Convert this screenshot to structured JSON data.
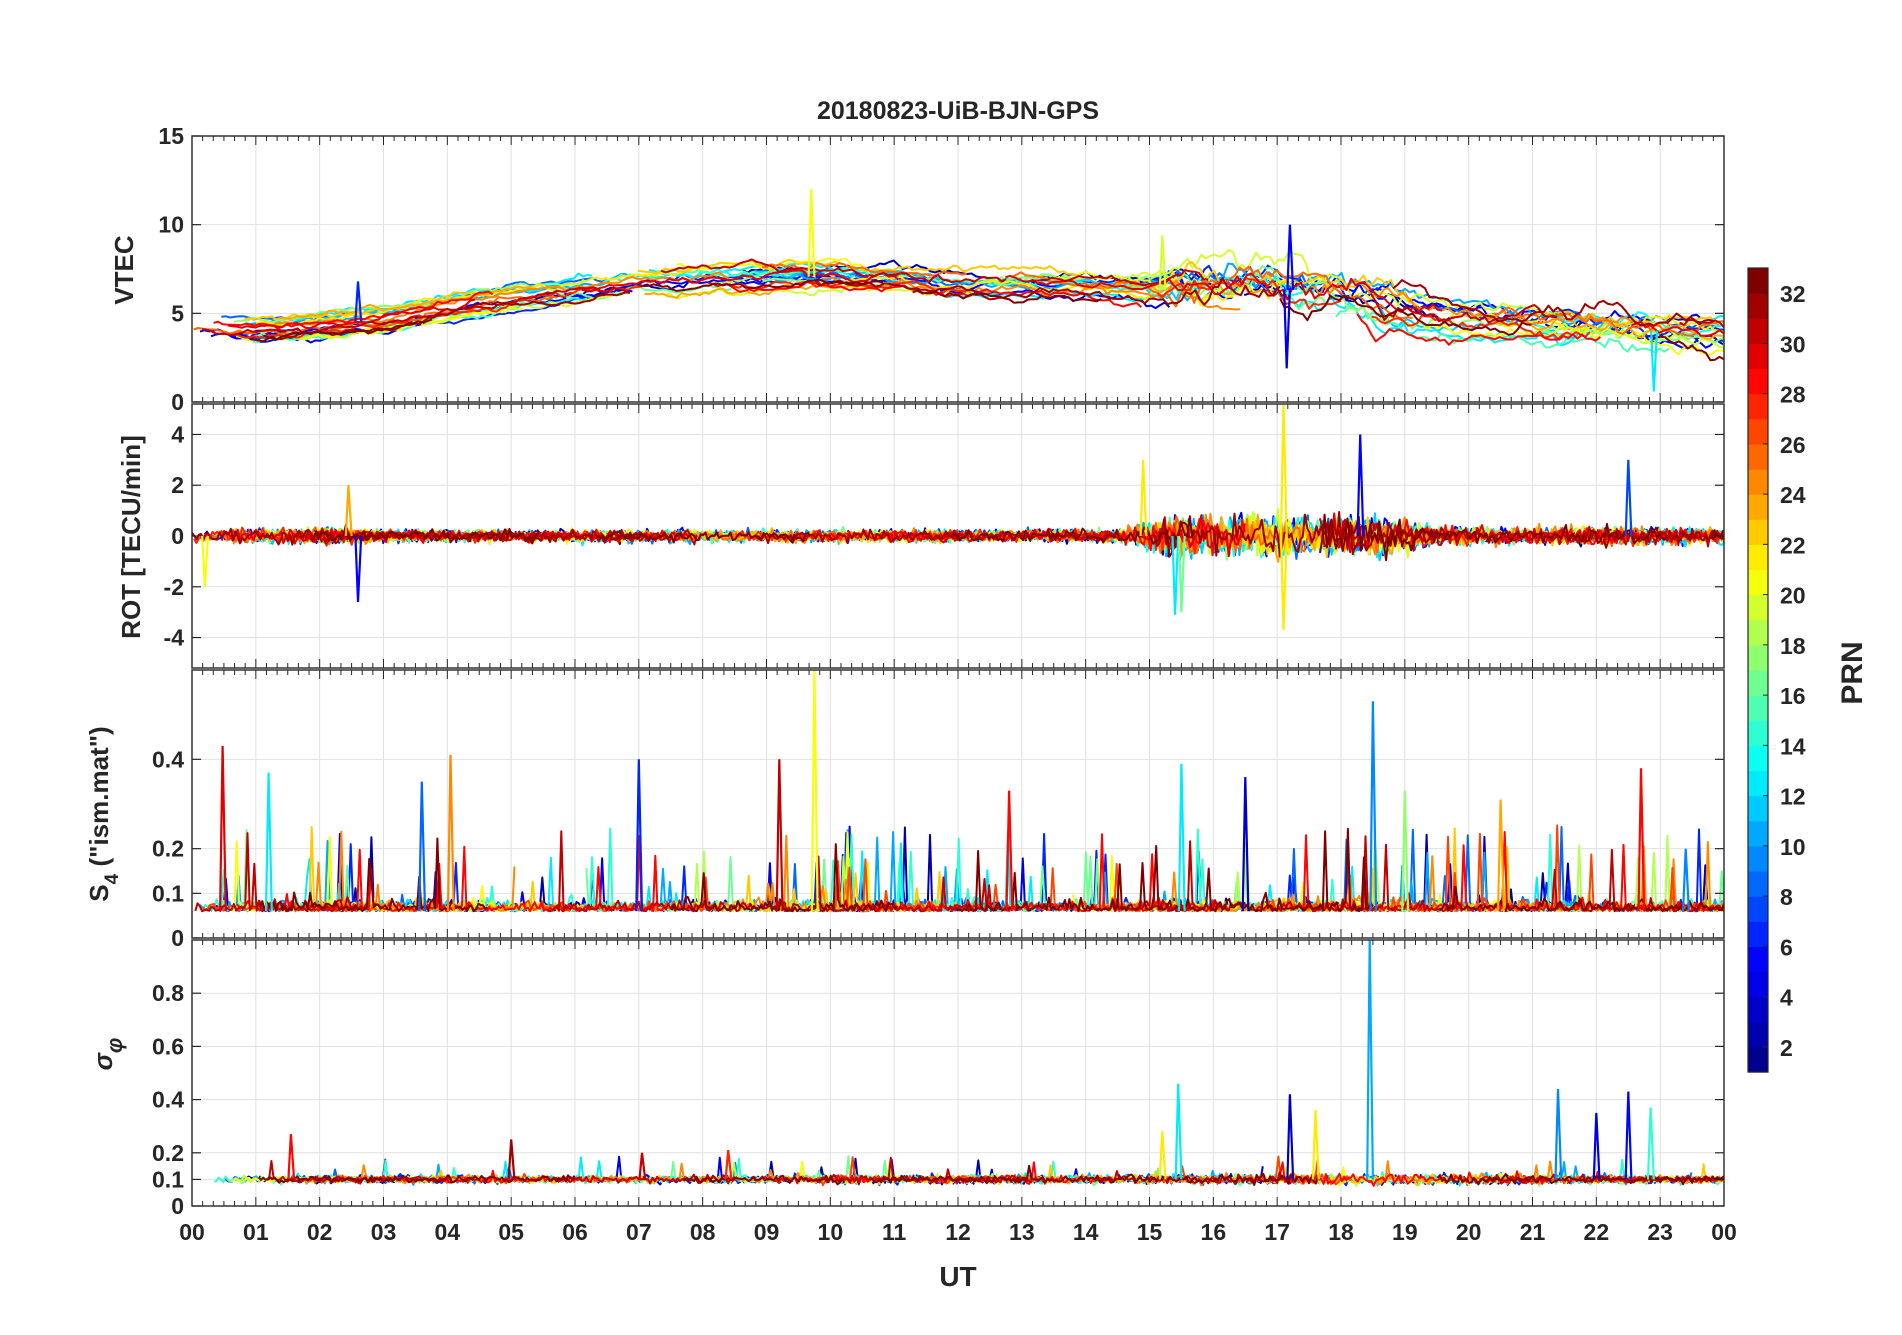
{
  "chart_data": {
    "type": "line",
    "title": "20180823-UiB-BJN-GPS",
    "xlabel": "UT",
    "x_ticks": [
      "00",
      "01",
      "02",
      "03",
      "04",
      "05",
      "06",
      "07",
      "08",
      "09",
      "10",
      "11",
      "12",
      "13",
      "14",
      "15",
      "16",
      "17",
      "18",
      "19",
      "20",
      "21",
      "22",
      "23",
      "00"
    ],
    "xlim": [
      0,
      24
    ],
    "grid": true,
    "colorbar": {
      "label": "PRN",
      "range": [
        1,
        32
      ],
      "ticks": [
        2,
        4,
        6,
        8,
        10,
        12,
        14,
        16,
        18,
        20,
        22,
        24,
        26,
        28,
        30,
        32
      ],
      "colormap": "jet",
      "colors": [
        "#00008f",
        "#0000ff",
        "#0080ff",
        "#00ffff",
        "#80ff80",
        "#ffff00",
        "#ff8000",
        "#ff0000",
        "#800000"
      ]
    },
    "panels": [
      {
        "id": "vtec",
        "ylabel": "VTEC",
        "ylim": [
          0,
          15
        ],
        "y_ticks": [
          0,
          5,
          10,
          15
        ],
        "y_tick_labels": [
          "0",
          "5",
          "10",
          "15"
        ],
        "baseline": [
          [
            0,
            4.3
          ],
          [
            1,
            4.1
          ],
          [
            2,
            4.3
          ],
          [
            3,
            4.7
          ],
          [
            4,
            5.3
          ],
          [
            5,
            5.9
          ],
          [
            6,
            6.4
          ],
          [
            7,
            6.8
          ],
          [
            8,
            7.0
          ],
          [
            9,
            7.0
          ],
          [
            10,
            7.1
          ],
          [
            11,
            6.9
          ],
          [
            12,
            6.6
          ],
          [
            13,
            6.5
          ],
          [
            14,
            6.4
          ],
          [
            15,
            6.3
          ],
          [
            16,
            6.3
          ],
          [
            17,
            6.4
          ],
          [
            18,
            6.0
          ],
          [
            19,
            5.2
          ],
          [
            20,
            4.7
          ],
          [
            21,
            4.4
          ],
          [
            22,
            4.2
          ],
          [
            23,
            4.0
          ],
          [
            24,
            3.8
          ]
        ],
        "noise": [
          [
            0,
            0.3
          ],
          [
            14.8,
            0.4
          ],
          [
            15.5,
            1.2
          ],
          [
            18.5,
            1.0
          ],
          [
            20,
            0.5
          ],
          [
            22,
            0.8
          ],
          [
            24,
            0.5
          ]
        ],
        "spikes": [
          {
            "t": 9.7,
            "v": 12.0,
            "prn": 20
          },
          {
            "t": 17.2,
            "v": 10.0,
            "prn": 5
          },
          {
            "t": 17.15,
            "v": 1.9,
            "prn": 4
          },
          {
            "t": 22.9,
            "v": 0.6,
            "prn": 12
          },
          {
            "t": 2.6,
            "v": 6.8,
            "prn": 6
          },
          {
            "t": 15.2,
            "v": 9.4,
            "prn": 19
          }
        ],
        "series_prns": [
          2,
          4,
          5,
          6,
          8,
          10,
          11,
          12,
          13,
          15,
          16,
          17,
          19,
          20,
          21,
          22,
          23,
          24,
          25,
          27,
          28,
          29,
          30,
          31,
          32
        ]
      },
      {
        "id": "rot",
        "ylabel": "ROT [TECU/min]",
        "ylim": [
          -5.2,
          5.2
        ],
        "y_ticks": [
          -4,
          -2,
          0,
          2,
          4
        ],
        "y_tick_labels": [
          "-4",
          "-2",
          "0",
          "2",
          "4"
        ],
        "baseline": [
          [
            0,
            0
          ],
          [
            24,
            0
          ]
        ],
        "noise": [
          [
            0,
            0.25
          ],
          [
            2.3,
            0.35
          ],
          [
            3,
            0.25
          ],
          [
            14.5,
            0.25
          ],
          [
            15.3,
            0.8
          ],
          [
            16.5,
            0.9
          ],
          [
            18.5,
            0.8
          ],
          [
            19.5,
            0.4
          ],
          [
            21,
            0.3
          ],
          [
            22,
            0.45
          ],
          [
            24,
            0.3
          ]
        ],
        "spikes": [
          {
            "t": 17.1,
            "v": 5.2,
            "prn": 21
          },
          {
            "t": 17.1,
            "v": -3.7,
            "prn": 21
          },
          {
            "t": 18.3,
            "v": 4.0,
            "prn": 5
          },
          {
            "t": 2.6,
            "v": -2.6,
            "prn": 5
          },
          {
            "t": 15.4,
            "v": -3.1,
            "prn": 12
          },
          {
            "t": 15.5,
            "v": -3.0,
            "prn": 16
          },
          {
            "t": 22.5,
            "v": 3.0,
            "prn": 7
          },
          {
            "t": 14.9,
            "v": 3.0,
            "prn": 21
          },
          {
            "t": 0.2,
            "v": -2.0,
            "prn": 20
          },
          {
            "t": 2.45,
            "v": 2.0,
            "prn": 23
          }
        ],
        "series_prns": [
          2,
          4,
          5,
          6,
          8,
          10,
          11,
          12,
          13,
          15,
          16,
          17,
          19,
          20,
          21,
          22,
          23,
          24,
          25,
          27,
          28,
          29,
          30,
          31,
          32
        ]
      },
      {
        "id": "s4",
        "ylabel": "S4 (\"ism.mat\")",
        "ylim": [
          0,
          0.6
        ],
        "y_ticks": [
          0,
          0.1,
          0.2,
          0.4
        ],
        "y_tick_labels": [
          "0",
          "0.1",
          "0.2",
          "0.4"
        ],
        "baseline": [
          [
            0,
            0.06
          ],
          [
            24,
            0.06
          ]
        ],
        "noise": [
          [
            0,
            0.025
          ],
          [
            24,
            0.025
          ]
        ],
        "spikes": [
          {
            "t": 9.75,
            "v": 0.6,
            "prn": 20
          },
          {
            "t": 18.5,
            "v": 0.53,
            "prn": 9
          },
          {
            "t": 0.48,
            "v": 0.43,
            "prn": 29
          },
          {
            "t": 4.05,
            "v": 0.41,
            "prn": 24
          },
          {
            "t": 9.2,
            "v": 0.4,
            "prn": 30
          },
          {
            "t": 7.0,
            "v": 0.4,
            "prn": 6
          },
          {
            "t": 15.5,
            "v": 0.39,
            "prn": 12
          },
          {
            "t": 22.7,
            "v": 0.38,
            "prn": 28
          },
          {
            "t": 1.2,
            "v": 0.37,
            "prn": 12
          },
          {
            "t": 3.6,
            "v": 0.35,
            "prn": 8
          },
          {
            "t": 16.5,
            "v": 0.36,
            "prn": 3
          },
          {
            "t": 19,
            "v": 0.33,
            "prn": 17
          },
          {
            "t": 23.4,
            "v": 0.2,
            "prn": 9
          },
          {
            "t": 12.8,
            "v": 0.33,
            "prn": 28
          },
          {
            "t": 20.5,
            "v": 0.31,
            "prn": 23
          }
        ],
        "series_prns": [
          2,
          4,
          6,
          8,
          10,
          12,
          14,
          16,
          18,
          20,
          22,
          24,
          26,
          28,
          30,
          32
        ]
      },
      {
        "id": "sigma_phi",
        "ylabel": "σφ",
        "ylim": [
          0,
          1
        ],
        "y_ticks": [
          0,
          0.1,
          0.2,
          0.4,
          0.6,
          0.8
        ],
        "y_tick_labels": [
          "0",
          "0.1",
          "0.2",
          "0.4",
          "0.6",
          "0.8"
        ],
        "baseline": [
          [
            0,
            0.1
          ],
          [
            24,
            0.1
          ]
        ],
        "noise": [
          [
            0,
            0.012
          ],
          [
            15,
            0.015
          ],
          [
            17,
            0.02
          ],
          [
            24,
            0.012
          ]
        ],
        "spikes": [
          {
            "t": 18.45,
            "v": 1.0,
            "prn": 10
          },
          {
            "t": 15.45,
            "v": 0.46,
            "prn": 12
          },
          {
            "t": 21.4,
            "v": 0.44,
            "prn": 9
          },
          {
            "t": 22.5,
            "v": 0.43,
            "prn": 5
          },
          {
            "t": 17.2,
            "v": 0.42,
            "prn": 3
          },
          {
            "t": 17.6,
            "v": 0.36,
            "prn": 21
          },
          {
            "t": 22.0,
            "v": 0.35,
            "prn": 4
          },
          {
            "t": 22.85,
            "v": 0.37,
            "prn": 14
          },
          {
            "t": 1.55,
            "v": 0.27,
            "prn": 28
          },
          {
            "t": 5.0,
            "v": 0.25,
            "prn": 31
          },
          {
            "t": 15.2,
            "v": 0.28,
            "prn": 21
          },
          {
            "t": 7.05,
            "v": 0.2,
            "prn": 30
          },
          {
            "t": 8.4,
            "v": 0.21,
            "prn": 27
          }
        ],
        "series_prns": [
          2,
          4,
          6,
          8,
          10,
          12,
          14,
          16,
          18,
          20,
          22,
          24,
          26,
          28,
          30,
          32
        ]
      }
    ]
  }
}
